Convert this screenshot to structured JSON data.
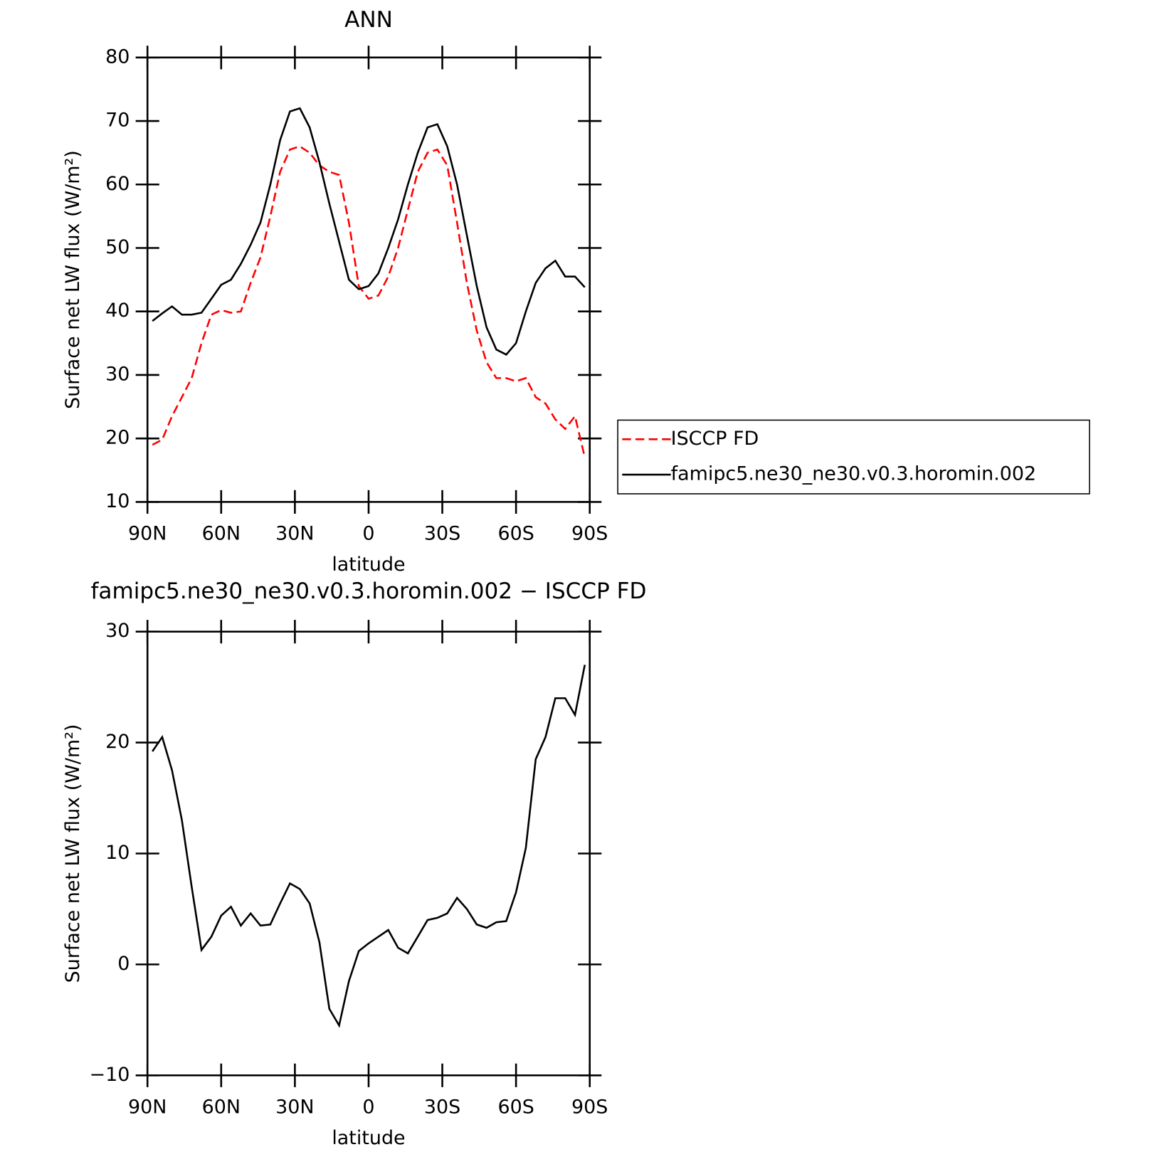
{
  "chart_data": [
    {
      "type": "line",
      "title": "ANN",
      "xlabel": "latitude",
      "ylabel": "Surface net LW flux (W/m²)",
      "x": [
        88,
        84,
        80,
        76,
        72,
        68,
        64,
        60,
        56,
        52,
        48,
        44,
        40,
        36,
        32,
        28,
        24,
        20,
        16,
        12,
        8,
        4,
        0,
        -4,
        -8,
        -12,
        -16,
        -20,
        -24,
        -28,
        -32,
        -36,
        -40,
        -44,
        -48,
        -52,
        -56,
        -60,
        -64,
        -68,
        -72,
        -76,
        -80,
        -84,
        -88
      ],
      "xlim": [
        90,
        -90
      ],
      "xticks": [
        {
          "value": 90,
          "label": "90N"
        },
        {
          "value": 60,
          "label": "60N"
        },
        {
          "value": 30,
          "label": "30N"
        },
        0,
        {
          "value": -30,
          "label": "30S"
        },
        {
          "value": -60,
          "label": "60S"
        },
        {
          "value": -90,
          "label": "90S"
        }
      ],
      "ylim": [
        10,
        80
      ],
      "yticks": [
        10,
        20,
        30,
        40,
        50,
        60,
        70,
        80
      ],
      "legend": "outside right",
      "series": [
        {
          "name": "ISCCP FD",
          "color": "#ff0000",
          "dash": true,
          "values": [
            19,
            19.8,
            23.5,
            26.5,
            29.5,
            35,
            39.5,
            40.2,
            39.8,
            40,
            44.5,
            48.5,
            55,
            62,
            65.5,
            66,
            65,
            63,
            62,
            61.5,
            54,
            44,
            42,
            42.5,
            45.5,
            50,
            56,
            62,
            65,
            65.5,
            63,
            54,
            44.5,
            37,
            32,
            29.5,
            29.5,
            29,
            29.5,
            26.5,
            25.5,
            23,
            21.5,
            23.5,
            17
          ]
        },
        {
          "name": "famipc5.ne30_ne30.v0.3.horomin.002",
          "color": "#000000",
          "dash": false,
          "values": [
            38.5,
            39.7,
            40.8,
            39.5,
            39.5,
            39.8,
            42,
            44.2,
            45,
            47.5,
            50.5,
            54,
            60,
            67,
            71.5,
            72,
            69,
            63.5,
            57,
            51,
            45,
            43.5,
            44,
            46,
            50,
            54.5,
            60,
            65,
            69,
            69.5,
            66,
            60,
            52,
            44,
            37.5,
            34,
            33.2,
            35,
            40,
            44.5,
            46.8,
            48,
            45.5,
            45.5,
            43.8
          ]
        }
      ]
    },
    {
      "type": "line",
      "title": "famipc5.ne30_ne30.v0.3.horomin.002 − ISCCP FD",
      "xlabel": "latitude",
      "ylabel": "Surface net LW flux (W/m²)",
      "x": [
        88,
        84,
        80,
        76,
        72,
        68,
        64,
        60,
        56,
        52,
        48,
        44,
        40,
        36,
        32,
        28,
        24,
        20,
        16,
        12,
        8,
        4,
        0,
        -4,
        -8,
        -12,
        -16,
        -20,
        -24,
        -28,
        -32,
        -36,
        -40,
        -44,
        -48,
        -52,
        -56,
        -60,
        -64,
        -68,
        -72,
        -76,
        -80,
        -84,
        -88
      ],
      "xlim": [
        90,
        -90
      ],
      "xticks": [
        {
          "value": 90,
          "label": "90N"
        },
        {
          "value": 60,
          "label": "60N"
        },
        {
          "value": 30,
          "label": "30N"
        },
        0,
        {
          "value": -30,
          "label": "30S"
        },
        {
          "value": -60,
          "label": "60S"
        },
        {
          "value": -90,
          "label": "90S"
        }
      ],
      "ylim": [
        -10,
        30
      ],
      "yticks": [
        {
          "value": -10,
          "label": "−10"
        },
        0,
        10,
        20,
        30
      ],
      "series": [
        {
          "color": "#000000",
          "dash": false,
          "values": [
            19.2,
            20.5,
            17.5,
            13,
            7,
            1.3,
            2.5,
            4.4,
            5.2,
            3.5,
            4.6,
            3.5,
            3.6,
            5.5,
            7.3,
            6.8,
            5.5,
            2,
            -4,
            -5.5,
            -1.5,
            1.2,
            1.9,
            2.5,
            3.1,
            1.5,
            1,
            2.5,
            4,
            4.2,
            4.6,
            6,
            5,
            3.6,
            3.3,
            3.8,
            3.9,
            6.5,
            10.5,
            18.5,
            20.5,
            24,
            24,
            22.5,
            27
          ]
        }
      ]
    }
  ]
}
